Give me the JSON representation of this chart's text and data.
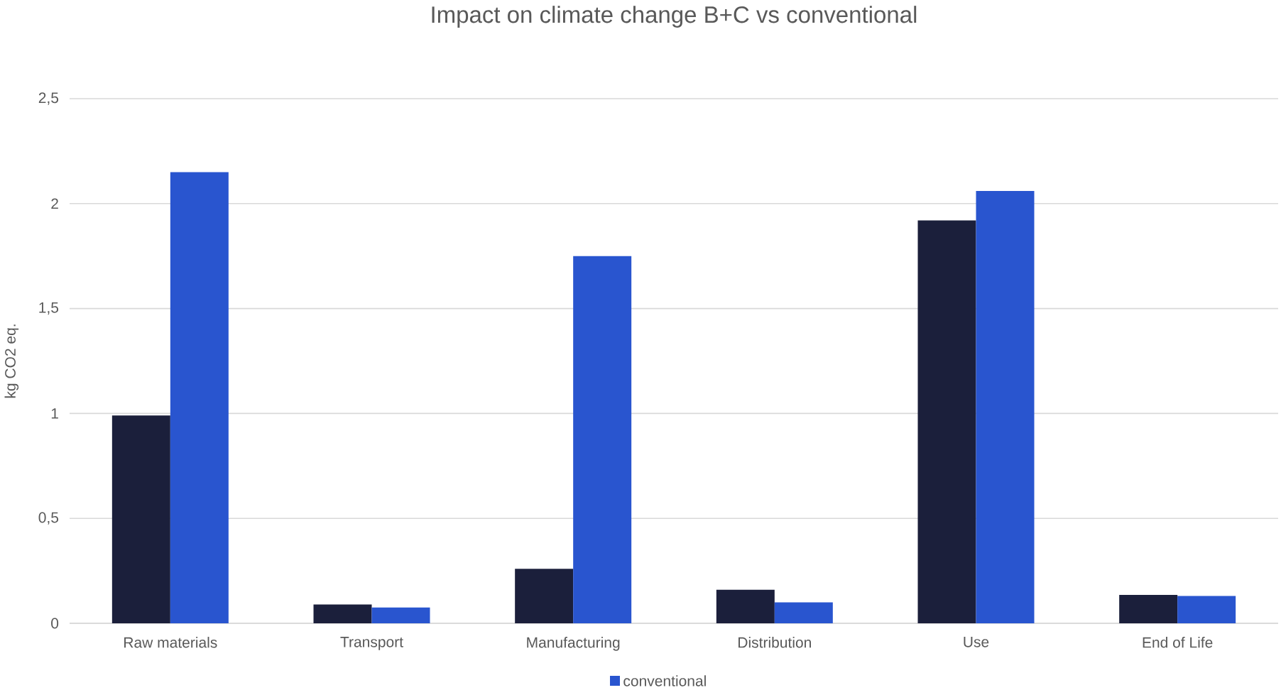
{
  "chart_data": {
    "type": "bar",
    "title": "Impact on climate change B+C vs conventional",
    "ylabel": "kg CO2 eq.",
    "categories": [
      "Raw materials",
      "Transport",
      "Manufacturing",
      "Distribution",
      "Use",
      "End of Life"
    ],
    "series": [
      {
        "color": "#1b1f3b",
        "values": [
          0.99,
          0.09,
          0.26,
          0.16,
          1.92,
          0.135
        ]
      },
      {
        "name": "conventional",
        "color": "#2955cf",
        "values": [
          2.15,
          0.075,
          1.75,
          0.1,
          2.06,
          0.13
        ]
      }
    ],
    "ylim": [
      0,
      2.5
    ],
    "yticks": [
      0,
      {
        "value": 0.5,
        "label": "0,5"
      },
      1,
      {
        "value": 1.5,
        "label": "1,5"
      },
      2,
      {
        "value": 2.5,
        "label": "2,5"
      }
    ],
    "grid": "y",
    "legend": "bottom"
  }
}
